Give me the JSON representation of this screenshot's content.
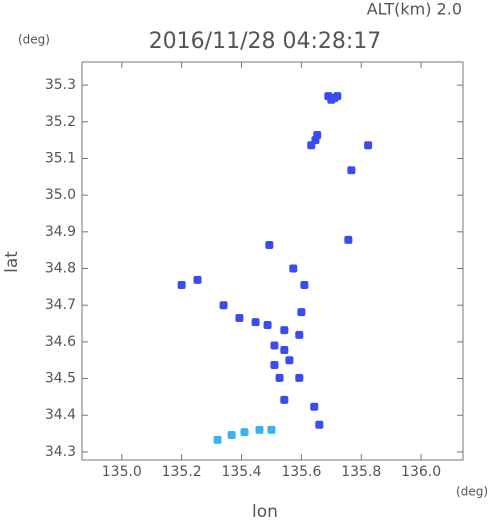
{
  "chart_data": {
    "type": "scatter",
    "title": "2016/11/28 04:28:17",
    "subtitle": "ALT(km) 2.0",
    "y_unit": "(deg)",
    "x_unit": "(deg)",
    "x_label": "lon",
    "y_label": "lat",
    "xlim": [
      134.867,
      136.14
    ],
    "ylim": [
      34.278,
      35.363
    ],
    "xticks": [
      {
        "value": 135.0,
        "label": "135.0"
      },
      135.2,
      135.4,
      135.6,
      135.8,
      {
        "value": 136.0,
        "label": "136.0"
      }
    ],
    "yticks": [
      34.3,
      34.4,
      34.5,
      34.6,
      34.7,
      34.8,
      34.9,
      {
        "value": 35.0,
        "label": "35.0"
      },
      35.1,
      35.2,
      35.3
    ],
    "series": [
      {
        "color": "#3a4cf0",
        "x": [
          135.69,
          135.71,
          135.7,
          135.72,
          135.647,
          135.633,
          135.653,
          135.823,
          135.767,
          135.757,
          135.493,
          135.573,
          135.253,
          135.2,
          135.61,
          135.34,
          135.393,
          135.447,
          135.487,
          135.543,
          135.6,
          135.593,
          135.51,
          135.543,
          135.56,
          135.51,
          135.527,
          135.593,
          135.543,
          135.643,
          135.66
        ],
        "y": [
          35.27,
          35.265,
          35.26,
          35.27,
          35.15,
          35.136,
          35.164,
          35.136,
          35.068,
          34.878,
          34.864,
          34.8,
          34.769,
          34.755,
          34.755,
          34.7,
          34.665,
          34.654,
          34.646,
          34.632,
          34.681,
          34.619,
          34.59,
          34.578,
          34.55,
          34.537,
          34.502,
          34.502,
          34.442,
          34.423,
          34.374
        ]
      },
      {
        "color": "#3ab4f0",
        "x": [
          135.32,
          135.367,
          135.41,
          135.46,
          135.5
        ],
        "y": [
          34.333,
          34.346,
          34.354,
          34.36,
          34.36
        ]
      }
    ]
  }
}
